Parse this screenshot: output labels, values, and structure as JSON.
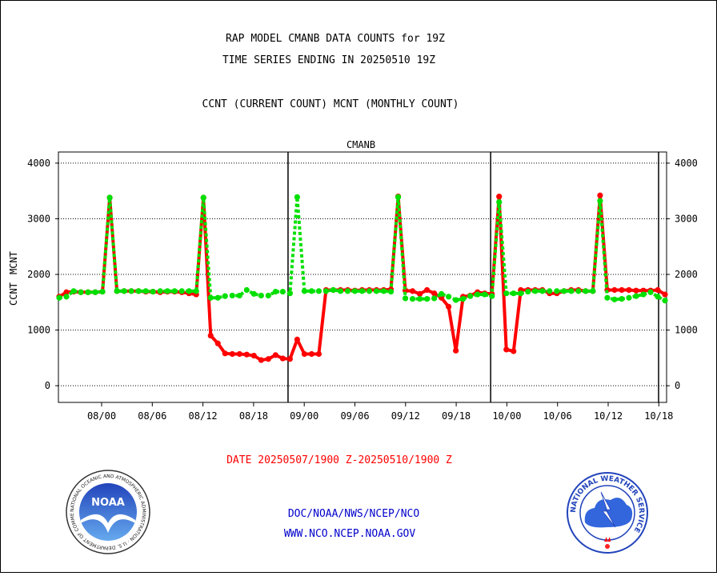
{
  "header": {
    "title_line1": "RAP MODEL CMANB DATA COUNTS for 19Z",
    "title_line2": "TIME SERIES ENDING IN 20250510 19Z",
    "subtitle": "CCNT (CURRENT COUNT) MCNT (MONTHLY COUNT)"
  },
  "footer": {
    "date_range": "DATE 20250507/1900 Z-20250510/1900 Z",
    "link1": "DOC/NOAA/NWS/NCEP/NCO",
    "link2": "WWW.NCO.NCEP.NOAA.GOV"
  },
  "logos": {
    "noaa_text": "NOAA",
    "noaa_ring": "NATIONAL OCEANIC AND ATMOSPHERIC ADMINISTRATION · U.S. DEPARTMENT OF COMMERCE ·",
    "nws_ring": "NATIONAL WEATHER SERVICE"
  },
  "colors": {
    "ccnt": "#ff0000",
    "mcnt": "#00e000",
    "station_label": "#0000cc",
    "footer_date": "#ff0000",
    "footer_links": "#0000cc"
  },
  "chart_data": {
    "type": "line",
    "plot_label": "CMANB",
    "ylabel_ccnt": "CCNT",
    "ylabel_mcnt": "MCNT",
    "ylim": [
      -300,
      4200
    ],
    "yticks": [
      0,
      1000,
      2000,
      3000,
      4000
    ],
    "x_tick_labels": [
      "08/00",
      "08/06",
      "08/12",
      "08/18",
      "09/00",
      "09/06",
      "09/12",
      "09/18",
      "10/00",
      "10/06",
      "10/12",
      "10/18"
    ],
    "day_separators_after_tick_index": [
      3,
      7
    ],
    "series": [
      {
        "name": "CCNT",
        "style": "solid",
        "values": [
          1600,
          1680,
          1690,
          1680,
          1680,
          1680,
          1690,
          3380,
          1700,
          1700,
          1700,
          1700,
          1690,
          1690,
          1680,
          1690,
          1690,
          1680,
          1660,
          1640,
          3380,
          900,
          760,
          580,
          570,
          570,
          560,
          540,
          460,
          480,
          550,
          490,
          480,
          830,
          570,
          570,
          570,
          1720,
          1720,
          1720,
          1720,
          1710,
          1720,
          1720,
          1720,
          1720,
          1730,
          3400,
          1710,
          1700,
          1650,
          1720,
          1660,
          1580,
          1420,
          630,
          1600,
          1620,
          1680,
          1660,
          1650,
          3400,
          650,
          620,
          1720,
          1720,
          1720,
          1720,
          1660,
          1660,
          1700,
          1720,
          1720,
          1700,
          1700,
          3420,
          1720,
          1720,
          1720,
          1720,
          1710,
          1710,
          1710,
          1720,
          1640
        ]
      },
      {
        "name": "MCNT",
        "style": "dotted",
        "values": [
          1580,
          1600,
          1700,
          1680,
          1680,
          1680,
          1690,
          3380,
          1700,
          1700,
          1700,
          1700,
          1700,
          1690,
          1700,
          1700,
          1700,
          1700,
          1700,
          1700,
          3380,
          1580,
          1580,
          1610,
          1620,
          1620,
          1720,
          1650,
          1620,
          1620,
          1690,
          1690,
          1660,
          3390,
          1700,
          1700,
          1700,
          1700,
          1720,
          1700,
          1700,
          1700,
          1700,
          1700,
          1700,
          1700,
          1690,
          3390,
          1570,
          1560,
          1560,
          1560,
          1570,
          1650,
          1600,
          1540,
          1560,
          1610,
          1640,
          1640,
          1610,
          3300,
          1660,
          1660,
          1660,
          1690,
          1700,
          1700,
          1700,
          1700,
          1700,
          1700,
          1700,
          1700,
          1700,
          3320,
          1580,
          1550,
          1560,
          1580,
          1610,
          1640,
          1680,
          1600,
          1530
        ]
      }
    ]
  }
}
